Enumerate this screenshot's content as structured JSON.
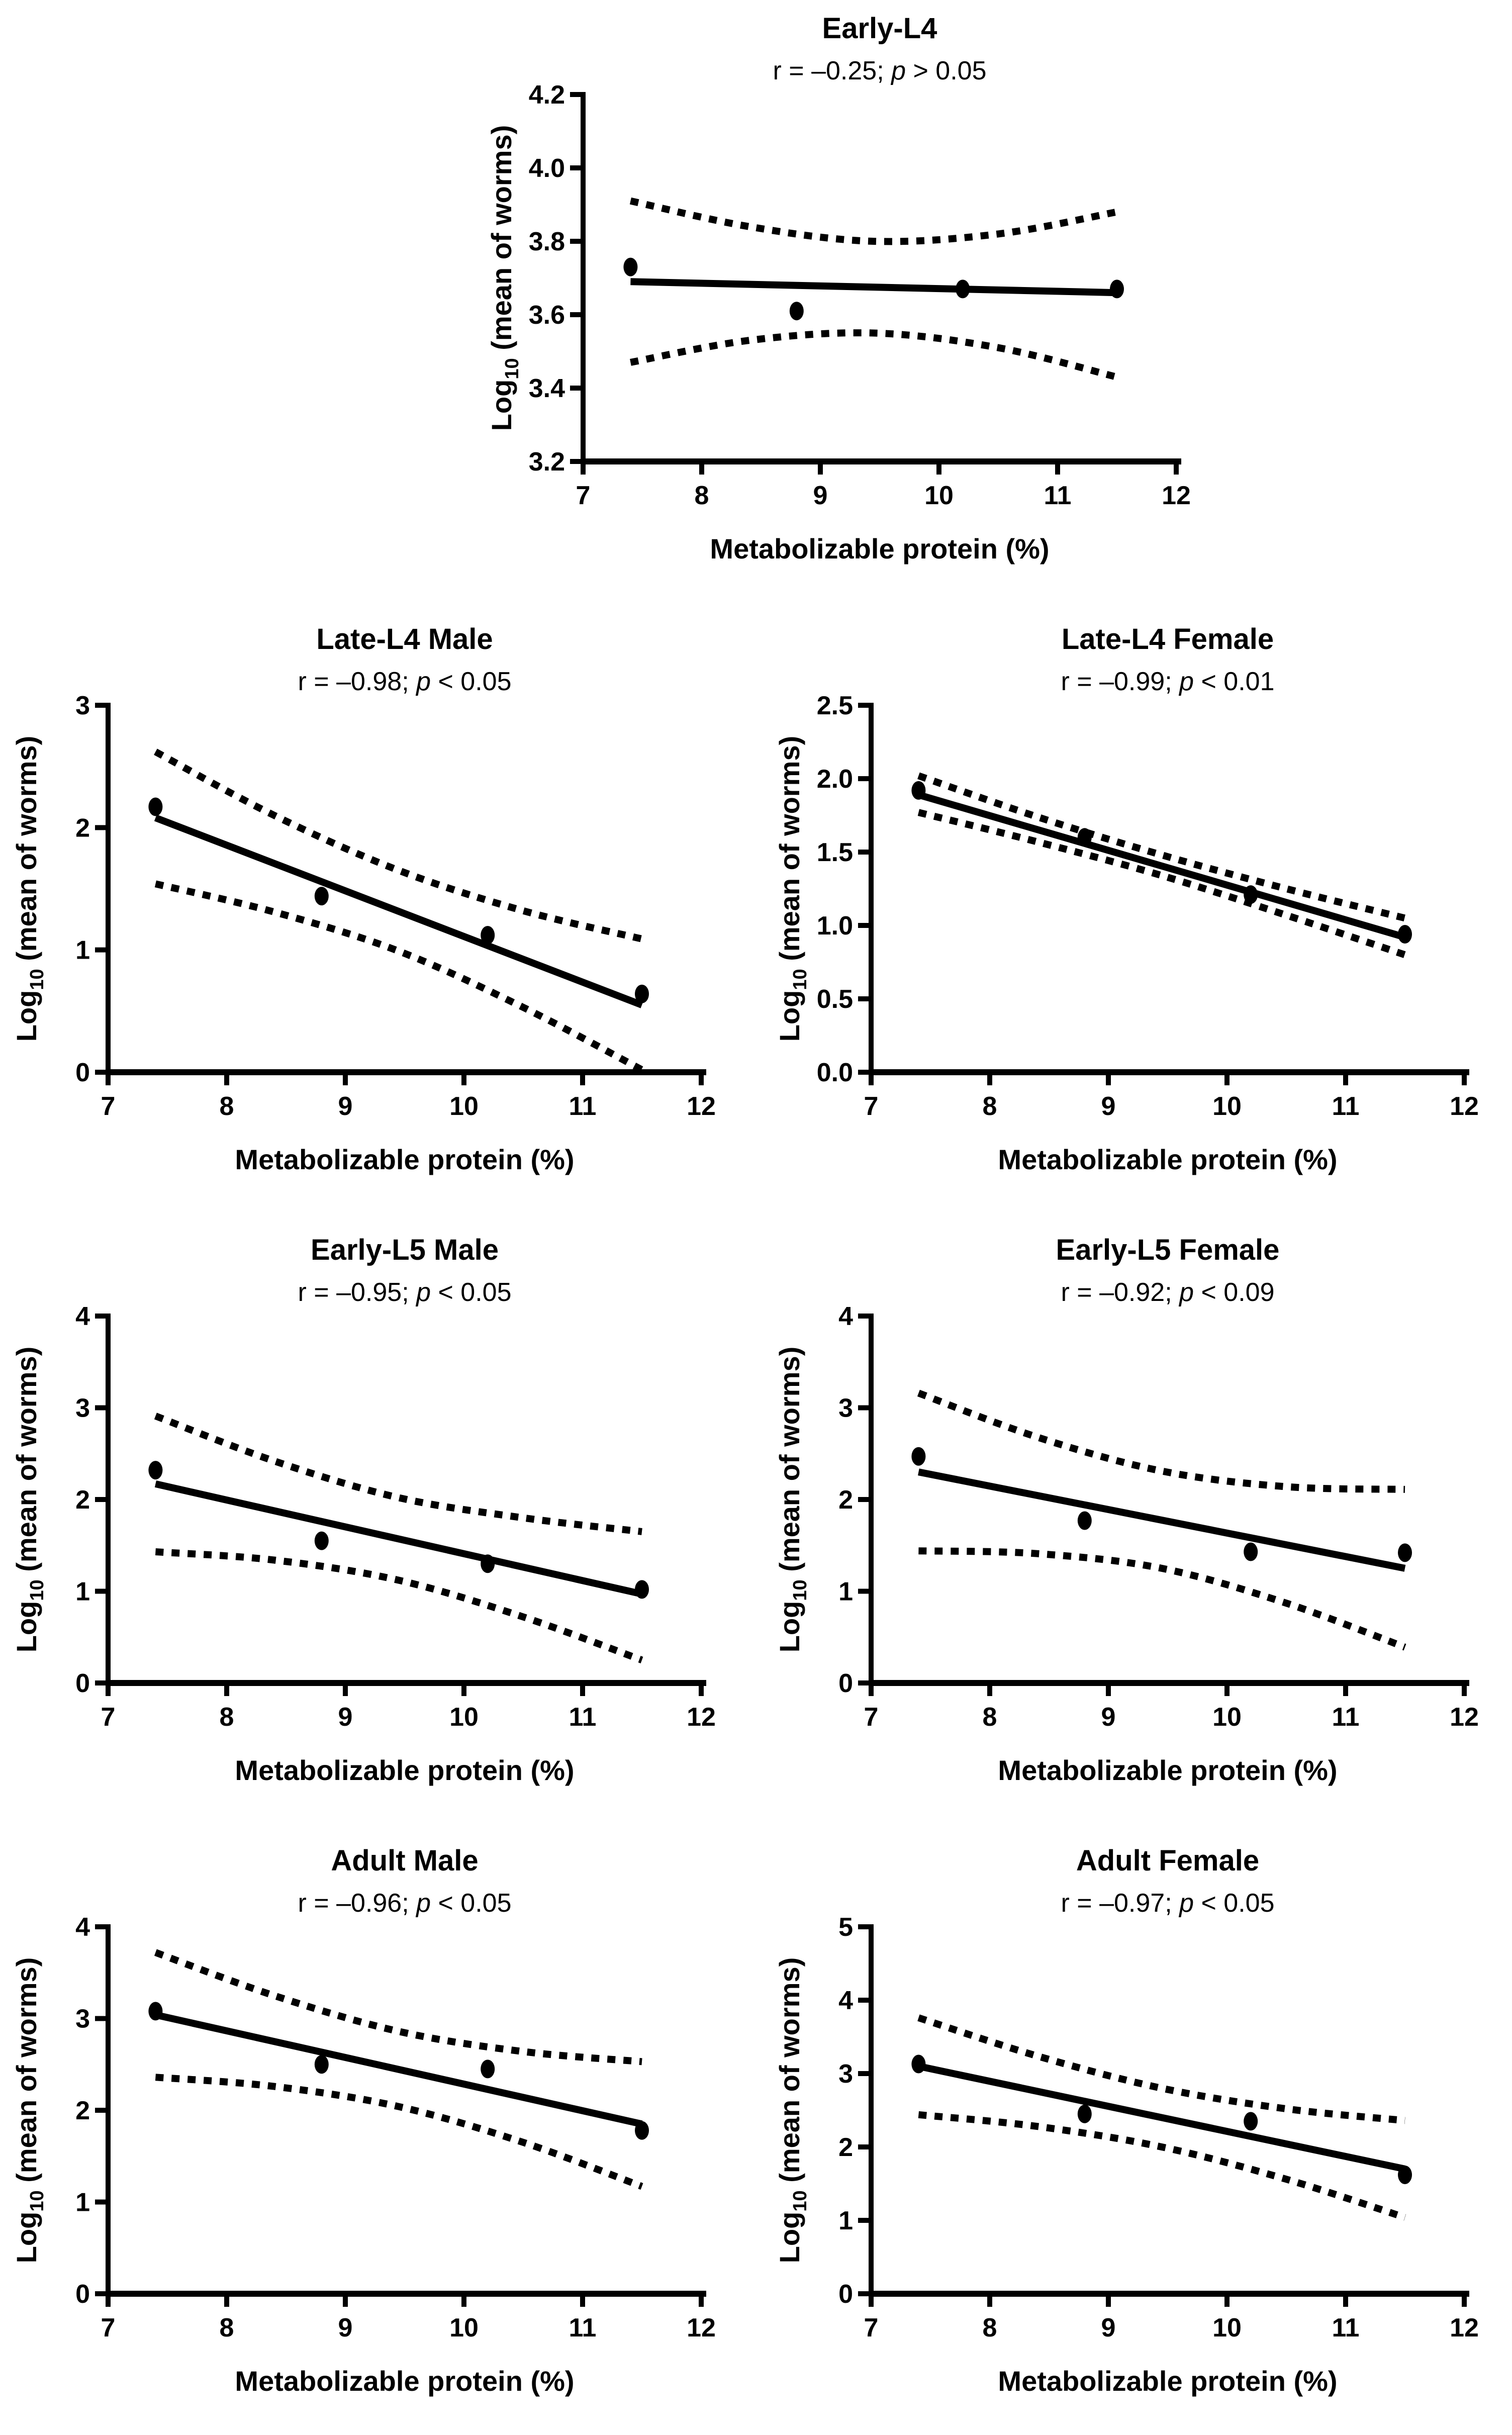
{
  "colors": {
    "ink": "#000000",
    "background": "#ffffff"
  },
  "figure": {
    "xlabel": "Metabolizable protein (%)",
    "ylabel": {
      "pre": "Log",
      "sub": "10",
      "post": " (mean of worms)"
    },
    "xlim": [
      7,
      12
    ],
    "x_ticks": [
      "7",
      "8",
      "9",
      "10",
      "11",
      "12"
    ]
  },
  "chart_data": [
    {
      "type": "scatter",
      "title": "Early-L4",
      "stats": {
        "prefix": "r = –0.25; ",
        "italic": "p",
        "suffix": " > 0.05"
      },
      "xlabel": "Metabolizable protein (%)",
      "ylabel": "Log10 (mean of worms)",
      "xlim": [
        7,
        12
      ],
      "ylim": [
        3.2,
        4.2
      ],
      "y_ticks": [
        "3.2",
        "3.4",
        "3.6",
        "3.8",
        "4.0",
        "4.2"
      ],
      "points": [
        [
          7.4,
          3.73
        ],
        [
          8.8,
          3.61
        ],
        [
          10.2,
          3.67
        ],
        [
          11.5,
          3.67
        ]
      ],
      "regression": [
        [
          7.4,
          3.69
        ],
        [
          11.5,
          3.66
        ]
      ],
      "ci_upper": [
        [
          7.4,
          3.91
        ],
        [
          8.4,
          3.84
        ],
        [
          9.45,
          3.8
        ],
        [
          10.5,
          3.82
        ],
        [
          11.5,
          3.88
        ]
      ],
      "ci_lower": [
        [
          7.4,
          3.47
        ],
        [
          8.4,
          3.53
        ],
        [
          9.45,
          3.55
        ],
        [
          10.5,
          3.51
        ],
        [
          11.5,
          3.43
        ]
      ]
    },
    {
      "type": "scatter",
      "title": "Late-L4 Male",
      "stats": {
        "prefix": "r = –0.98; ",
        "italic": "p",
        "suffix": " < 0.05"
      },
      "xlabel": "Metabolizable protein (%)",
      "ylabel": "Log10 (mean of worms)",
      "xlim": [
        7,
        12
      ],
      "ylim": [
        0,
        3
      ],
      "y_ticks": [
        "0",
        "1",
        "2",
        "3"
      ],
      "points": [
        [
          7.4,
          2.17
        ],
        [
          8.8,
          1.44
        ],
        [
          10.2,
          1.12
        ],
        [
          11.5,
          0.64
        ]
      ],
      "regression": [
        [
          7.4,
          2.08
        ],
        [
          11.5,
          0.55
        ]
      ],
      "ci_upper": [
        [
          7.4,
          2.62
        ],
        [
          8.4,
          2.1
        ],
        [
          9.45,
          1.65
        ],
        [
          10.5,
          1.32
        ],
        [
          11.5,
          1.09
        ]
      ],
      "ci_lower": [
        [
          7.4,
          1.54
        ],
        [
          8.4,
          1.31
        ],
        [
          9.45,
          0.99
        ],
        [
          10.5,
          0.53
        ],
        [
          11.5,
          0.02
        ]
      ]
    },
    {
      "type": "scatter",
      "title": "Late-L4 Female",
      "stats": {
        "prefix": "r = –0.99; ",
        "italic": "p",
        "suffix": " < 0.01"
      },
      "xlabel": "Metabolizable protein (%)",
      "ylabel": "Log10 (mean of worms)",
      "xlim": [
        7,
        12
      ],
      "ylim": [
        0,
        2.5
      ],
      "y_ticks": [
        "0.0",
        "0.5",
        "1.0",
        "1.5",
        "2.0",
        "2.5"
      ],
      "points": [
        [
          7.4,
          1.92
        ],
        [
          8.8,
          1.6
        ],
        [
          10.2,
          1.21
        ],
        [
          11.5,
          0.94
        ]
      ],
      "regression": [
        [
          7.4,
          1.89
        ],
        [
          11.5,
          0.92
        ]
      ],
      "ci_upper": [
        [
          7.4,
          2.02
        ],
        [
          8.4,
          1.74
        ],
        [
          9.45,
          1.48
        ],
        [
          10.5,
          1.25
        ],
        [
          11.5,
          1.05
        ]
      ],
      "ci_lower": [
        [
          7.4,
          1.77
        ],
        [
          8.4,
          1.57
        ],
        [
          9.45,
          1.34
        ],
        [
          10.5,
          1.07
        ],
        [
          11.5,
          0.8
        ]
      ]
    },
    {
      "type": "scatter",
      "title": "Early-L5 Male",
      "stats": {
        "prefix": "r = –0.95; ",
        "italic": "p",
        "suffix": " < 0.05"
      },
      "xlabel": "Metabolizable protein (%)",
      "ylabel": "Log10 (mean of worms)",
      "xlim": [
        7,
        12
      ],
      "ylim": [
        0,
        4
      ],
      "y_ticks": [
        "0",
        "1",
        "2",
        "3",
        "4"
      ],
      "points": [
        [
          7.4,
          2.32
        ],
        [
          8.8,
          1.55
        ],
        [
          10.2,
          1.3
        ],
        [
          11.5,
          1.02
        ]
      ],
      "regression": [
        [
          7.4,
          2.17
        ],
        [
          11.5,
          0.97
        ]
      ],
      "ci_upper": [
        [
          7.4,
          2.91
        ],
        [
          8.4,
          2.42
        ],
        [
          9.45,
          2.02
        ],
        [
          10.5,
          1.8
        ],
        [
          11.5,
          1.65
        ]
      ],
      "ci_lower": [
        [
          7.4,
          1.43
        ],
        [
          8.4,
          1.34
        ],
        [
          9.45,
          1.12
        ],
        [
          10.5,
          0.72
        ],
        [
          11.5,
          0.25
        ]
      ]
    },
    {
      "type": "scatter",
      "title": "Early-L5 Female",
      "stats": {
        "prefix": "r = –0.92; ",
        "italic": "p",
        "suffix": " < 0.09"
      },
      "xlabel": "Metabolizable protein (%)",
      "ylabel": "Log10 (mean of worms)",
      "xlim": [
        7,
        12
      ],
      "ylim": [
        0,
        4
      ],
      "y_ticks": [
        "0",
        "1",
        "2",
        "3",
        "4"
      ],
      "points": [
        [
          7.4,
          2.47
        ],
        [
          8.8,
          1.77
        ],
        [
          10.2,
          1.43
        ],
        [
          11.5,
          1.42
        ]
      ],
      "regression": [
        [
          7.4,
          2.3
        ],
        [
          11.5,
          1.25
        ]
      ],
      "ci_upper": [
        [
          7.4,
          3.16
        ],
        [
          8.4,
          2.68
        ],
        [
          9.45,
          2.31
        ],
        [
          10.5,
          2.14
        ],
        [
          11.5,
          2.11
        ]
      ],
      "ci_lower": [
        [
          7.4,
          1.44
        ],
        [
          8.4,
          1.41
        ],
        [
          9.45,
          1.25
        ],
        [
          10.5,
          0.87
        ],
        [
          11.5,
          0.39
        ]
      ]
    },
    {
      "type": "scatter",
      "title": "Adult Male",
      "stats": {
        "prefix": "r = –0.96; ",
        "italic": "p",
        "suffix": " < 0.05"
      },
      "xlabel": "Metabolizable protein (%)",
      "ylabel": "Log10 (mean of worms)",
      "xlim": [
        7,
        12
      ],
      "ylim": [
        0,
        4
      ],
      "y_ticks": [
        "0",
        "1",
        "2",
        "3",
        "4"
      ],
      "points": [
        [
          7.4,
          3.08
        ],
        [
          8.8,
          2.5
        ],
        [
          10.2,
          2.45
        ],
        [
          11.5,
          1.78
        ]
      ],
      "regression": [
        [
          7.4,
          3.04
        ],
        [
          11.5,
          1.85
        ]
      ],
      "ci_upper": [
        [
          7.4,
          3.72
        ],
        [
          8.4,
          3.25
        ],
        [
          9.45,
          2.86
        ],
        [
          10.5,
          2.64
        ],
        [
          11.5,
          2.53
        ]
      ],
      "ci_lower": [
        [
          7.4,
          2.36
        ],
        [
          8.4,
          2.26
        ],
        [
          9.45,
          2.04
        ],
        [
          10.5,
          1.65
        ],
        [
          11.5,
          1.17
        ]
      ]
    },
    {
      "type": "scatter",
      "title": "Adult Female",
      "stats": {
        "prefix": "r = –0.97; ",
        "italic": "p",
        "suffix": " < 0.05"
      },
      "xlabel": "Metabolizable protein (%)",
      "ylabel": "Log10 (mean of worms)",
      "xlim": [
        7,
        12
      ],
      "ylim": [
        0,
        5
      ],
      "y_ticks": [
        "0",
        "1",
        "2",
        "3",
        "4",
        "5"
      ],
      "points": [
        [
          7.4,
          3.13
        ],
        [
          8.8,
          2.45
        ],
        [
          10.2,
          2.35
        ],
        [
          11.5,
          1.62
        ]
      ],
      "regression": [
        [
          7.4,
          3.1
        ],
        [
          11.5,
          1.7
        ]
      ],
      "ci_upper": [
        [
          7.4,
          3.76
        ],
        [
          8.4,
          3.24
        ],
        [
          9.45,
          2.8
        ],
        [
          10.5,
          2.52
        ],
        [
          11.5,
          2.36
        ]
      ],
      "ci_lower": [
        [
          7.4,
          2.44
        ],
        [
          8.4,
          2.28
        ],
        [
          9.45,
          2.0
        ],
        [
          10.5,
          1.56
        ],
        [
          11.5,
          1.04
        ]
      ]
    }
  ]
}
